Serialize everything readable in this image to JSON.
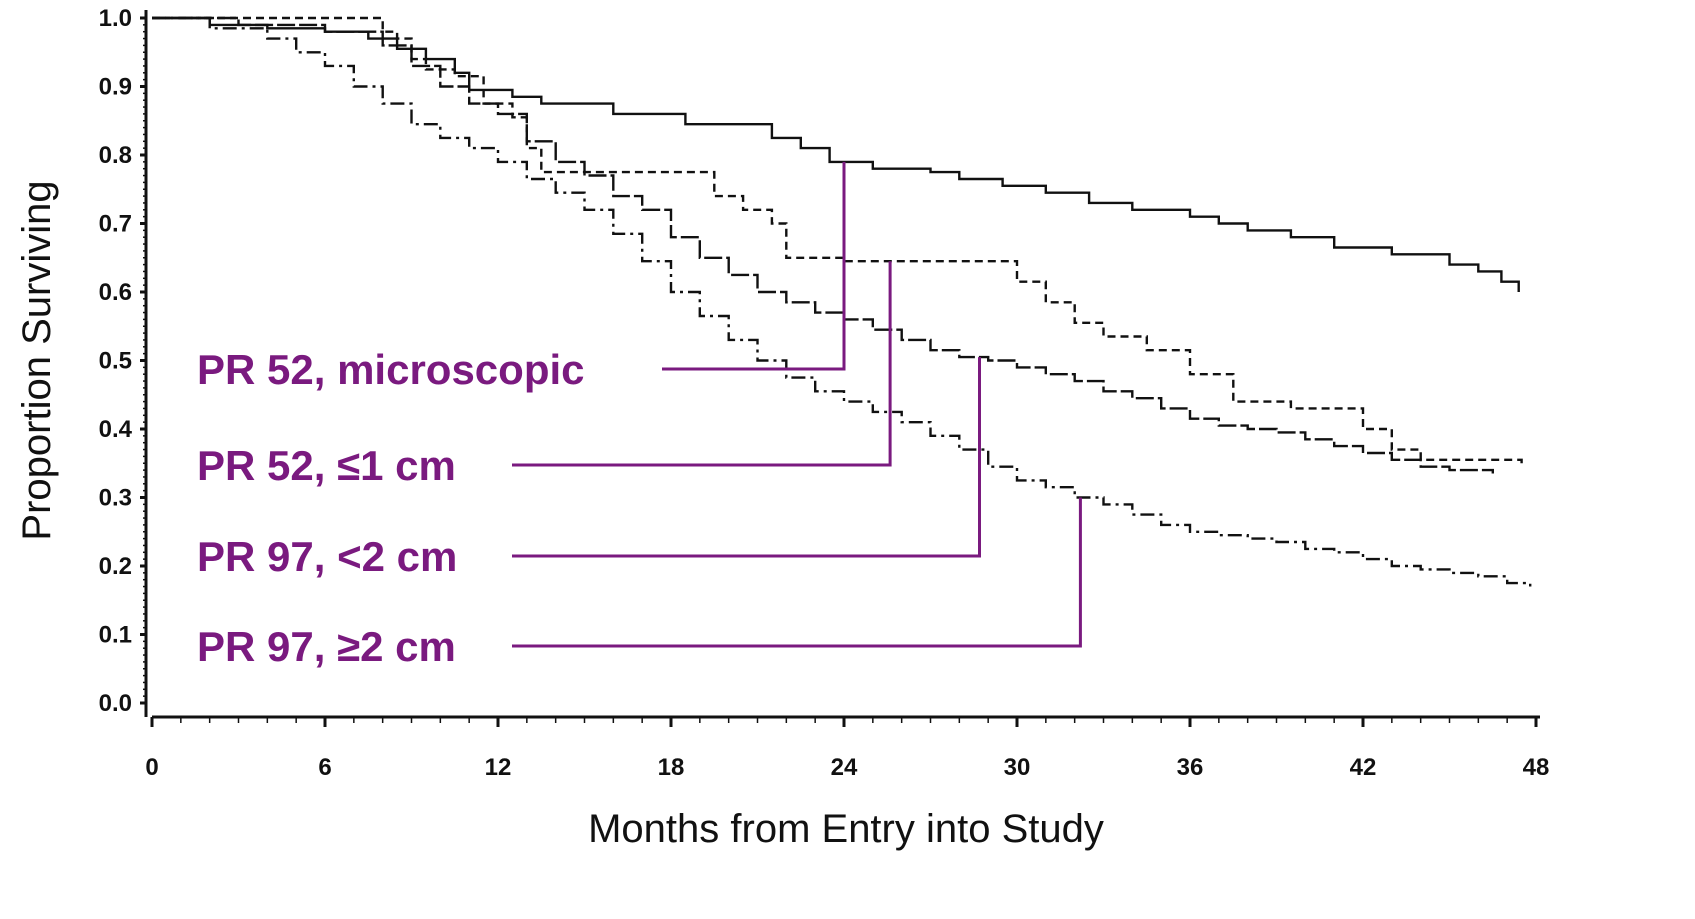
{
  "chart_data": {
    "type": "line",
    "title": "",
    "xlabel": "Months from Entry into Study",
    "ylabel": "Proportion Surviving",
    "xlim": [
      0,
      48
    ],
    "ylim": [
      0.0,
      1.0
    ],
    "x_ticks": [
      0,
      6,
      12,
      18,
      24,
      30,
      36,
      42,
      48
    ],
    "y_ticks": [
      "0.0",
      "0.1",
      "0.2",
      "0.3",
      "0.4",
      "0.5",
      "0.6",
      "0.7",
      "0.8",
      "0.9",
      "1.0"
    ],
    "grid": false,
    "step": true,
    "series": [
      {
        "name": "PR 52, microscopic",
        "line_style": "solid",
        "points": [
          [
            0,
            1.0
          ],
          [
            2,
            0.99
          ],
          [
            4,
            0.985
          ],
          [
            6,
            0.98
          ],
          [
            7.5,
            0.97
          ],
          [
            8.5,
            0.955
          ],
          [
            9.5,
            0.94
          ],
          [
            10.5,
            0.92
          ],
          [
            11,
            0.895
          ],
          [
            12.5,
            0.885
          ],
          [
            13.5,
            0.875
          ],
          [
            16,
            0.86
          ],
          [
            18.5,
            0.845
          ],
          [
            21.5,
            0.825
          ],
          [
            22.5,
            0.81
          ],
          [
            23.5,
            0.79
          ],
          [
            25,
            0.78
          ],
          [
            27,
            0.775
          ],
          [
            28,
            0.765
          ],
          [
            29.5,
            0.755
          ],
          [
            31,
            0.745
          ],
          [
            32.5,
            0.73
          ],
          [
            34,
            0.72
          ],
          [
            36,
            0.71
          ],
          [
            37,
            0.7
          ],
          [
            38,
            0.69
          ],
          [
            39.5,
            0.68
          ],
          [
            41,
            0.665
          ],
          [
            43,
            0.655
          ],
          [
            45,
            0.64
          ],
          [
            46,
            0.63
          ],
          [
            46.8,
            0.615
          ],
          [
            47.4,
            0.6
          ]
        ]
      },
      {
        "name": "PR 52, ≤1 cm",
        "line_style": "dashed",
        "points": [
          [
            0,
            1.0
          ],
          [
            8,
            0.98
          ],
          [
            8.5,
            0.97
          ],
          [
            9,
            0.94
          ],
          [
            9.5,
            0.925
          ],
          [
            10.5,
            0.915
          ],
          [
            11.5,
            0.875
          ],
          [
            12.5,
            0.855
          ],
          [
            13,
            0.81
          ],
          [
            13.5,
            0.775
          ],
          [
            19.5,
            0.74
          ],
          [
            20.5,
            0.72
          ],
          [
            21.5,
            0.7
          ],
          [
            22,
            0.65
          ],
          [
            24,
            0.645
          ],
          [
            30,
            0.615
          ],
          [
            31,
            0.585
          ],
          [
            32,
            0.555
          ],
          [
            33,
            0.535
          ],
          [
            34.5,
            0.515
          ],
          [
            36,
            0.48
          ],
          [
            37.5,
            0.44
          ],
          [
            39.5,
            0.43
          ],
          [
            42,
            0.4
          ],
          [
            43,
            0.37
          ],
          [
            44,
            0.355
          ],
          [
            47.5,
            0.35
          ]
        ]
      },
      {
        "name": "PR 97, <2 cm",
        "line_style": "long-dash",
        "points": [
          [
            0,
            1.0
          ],
          [
            3,
            0.99
          ],
          [
            6,
            0.98
          ],
          [
            8,
            0.96
          ],
          [
            9,
            0.93
          ],
          [
            10,
            0.9
          ],
          [
            11,
            0.875
          ],
          [
            12,
            0.86
          ],
          [
            13,
            0.82
          ],
          [
            14,
            0.79
          ],
          [
            15,
            0.77
          ],
          [
            16,
            0.74
          ],
          [
            17,
            0.72
          ],
          [
            18,
            0.68
          ],
          [
            19,
            0.65
          ],
          [
            20,
            0.625
          ],
          [
            21,
            0.6
          ],
          [
            22,
            0.585
          ],
          [
            23,
            0.57
          ],
          [
            24,
            0.56
          ],
          [
            25,
            0.545
          ],
          [
            26,
            0.53
          ],
          [
            27,
            0.515
          ],
          [
            28,
            0.505
          ],
          [
            29,
            0.5
          ],
          [
            30,
            0.49
          ],
          [
            31,
            0.48
          ],
          [
            32,
            0.47
          ],
          [
            33,
            0.455
          ],
          [
            34,
            0.445
          ],
          [
            35,
            0.43
          ],
          [
            36,
            0.415
          ],
          [
            37,
            0.405
          ],
          [
            38,
            0.4
          ],
          [
            39,
            0.395
          ],
          [
            40,
            0.385
          ],
          [
            41,
            0.375
          ],
          [
            42,
            0.365
          ],
          [
            43,
            0.355
          ],
          [
            44,
            0.345
          ],
          [
            45,
            0.34
          ],
          [
            46.5,
            0.335
          ]
        ]
      },
      {
        "name": "PR 97, ≥2 cm",
        "line_style": "dash-dot",
        "points": [
          [
            0,
            1.0
          ],
          [
            2,
            0.985
          ],
          [
            4,
            0.97
          ],
          [
            5,
            0.95
          ],
          [
            6,
            0.93
          ],
          [
            7,
            0.9
          ],
          [
            8,
            0.875
          ],
          [
            9,
            0.845
          ],
          [
            10,
            0.825
          ],
          [
            11,
            0.81
          ],
          [
            12,
            0.79
          ],
          [
            13,
            0.765
          ],
          [
            14,
            0.745
          ],
          [
            15,
            0.72
          ],
          [
            16,
            0.685
          ],
          [
            17,
            0.645
          ],
          [
            18,
            0.6
          ],
          [
            19,
            0.565
          ],
          [
            20,
            0.53
          ],
          [
            21,
            0.5
          ],
          [
            22,
            0.475
          ],
          [
            23,
            0.455
          ],
          [
            24,
            0.44
          ],
          [
            25,
            0.425
          ],
          [
            26,
            0.41
          ],
          [
            27,
            0.39
          ],
          [
            28,
            0.37
          ],
          [
            29,
            0.345
          ],
          [
            30,
            0.325
          ],
          [
            31,
            0.315
          ],
          [
            32,
            0.3
          ],
          [
            33,
            0.29
          ],
          [
            34,
            0.275
          ],
          [
            35,
            0.26
          ],
          [
            36,
            0.25
          ],
          [
            37,
            0.245
          ],
          [
            38,
            0.24
          ],
          [
            39,
            0.235
          ],
          [
            40,
            0.225
          ],
          [
            41,
            0.22
          ],
          [
            42,
            0.21
          ],
          [
            43,
            0.2
          ],
          [
            44,
            0.195
          ],
          [
            45,
            0.19
          ],
          [
            46,
            0.185
          ],
          [
            47,
            0.175
          ],
          [
            47.8,
            0.17
          ]
        ]
      }
    ],
    "annotations": [
      {
        "text": "PR 52, microscopic",
        "x": 24.0,
        "y": 0.79
      },
      {
        "text": "PR 52, ≤1 cm",
        "x": 25.6,
        "y": 0.645
      },
      {
        "text": "PR 97, <2 cm",
        "x": 28.7,
        "y": 0.505
      },
      {
        "text": "PR 97, ≥2 cm",
        "x": 32.2,
        "y": 0.3
      }
    ]
  }
}
